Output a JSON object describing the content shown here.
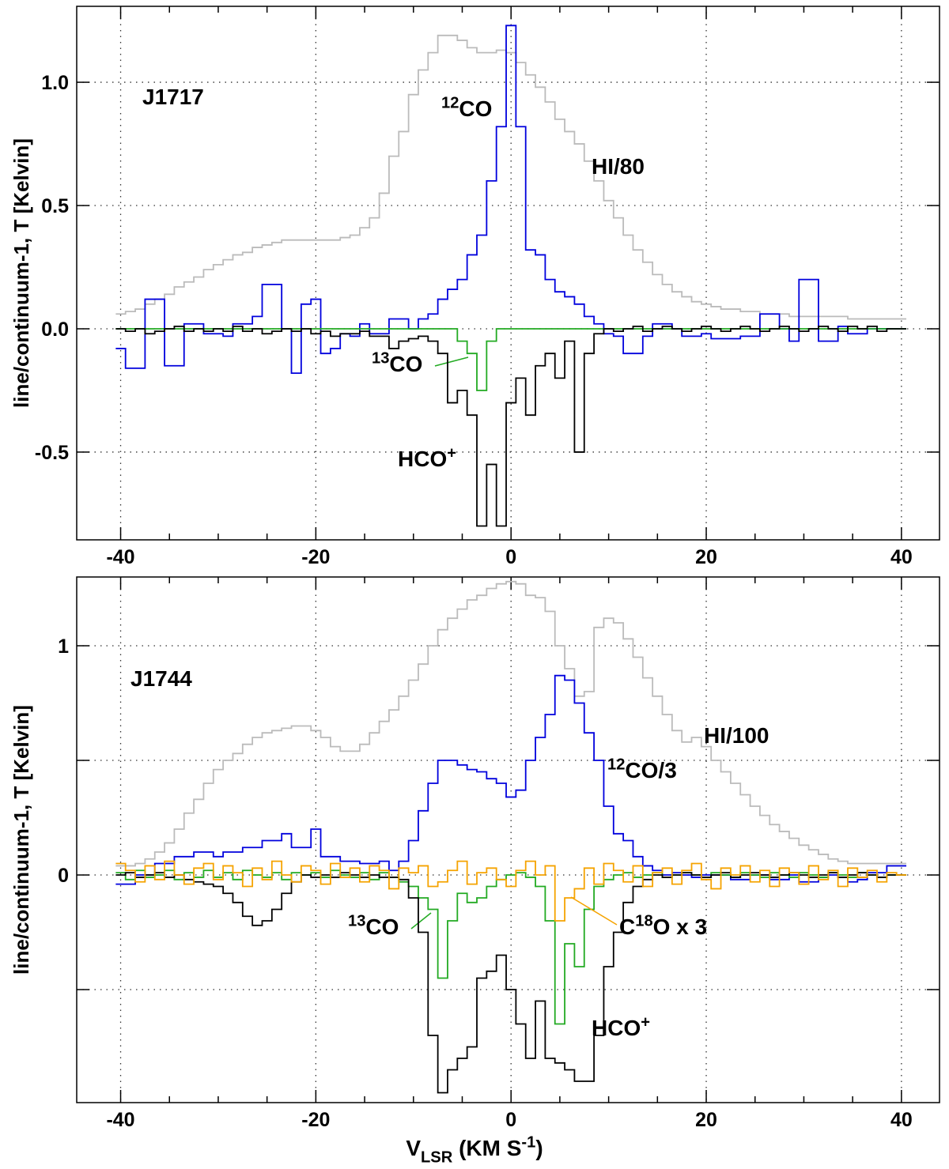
{
  "chart_data": [
    {
      "type": "line",
      "step": true,
      "title": "J1717",
      "ylabel": "line/continuum-1, T [Kelvin]",
      "x": [
        -40,
        -39,
        -38,
        -37,
        -36,
        -35,
        -34,
        -33,
        -32,
        -31,
        -30,
        -29,
        -28,
        -27,
        -26,
        -25,
        -24,
        -23,
        -22,
        -21,
        -20,
        -19,
        -18,
        -17,
        -16,
        -15,
        -14,
        -13,
        -12,
        -11,
        -10,
        -9,
        -8,
        -7,
        -6,
        -5,
        -4,
        -3,
        -2,
        -1,
        0,
        1,
        2,
        3,
        4,
        5,
        6,
        7,
        8,
        9,
        10,
        11,
        12,
        13,
        14,
        15,
        16,
        17,
        18,
        19,
        20,
        21,
        22,
        23,
        24,
        25,
        26,
        27,
        28,
        29,
        30,
        31,
        32,
        33,
        34,
        35,
        36,
        37,
        38,
        39,
        40
      ],
      "xlim": [
        -44.5,
        43.9
      ],
      "xticks": [
        -40,
        -20,
        0,
        20,
        40
      ],
      "xminorticks": [
        -35,
        -30,
        -25,
        -15,
        -10,
        -5,
        5,
        10,
        15,
        25,
        30,
        35
      ],
      "ylim": [
        -0.856,
        1.308
      ],
      "yticks": [
        -0.5,
        {
          "value": 0,
          "label": "0.0"
        },
        0.5,
        {
          "value": 1,
          "label": "1.0"
        }
      ],
      "yminorticks": [],
      "grid": true,
      "series": [
        {
          "label": [
            {
              "text": "HI/80"
            }
          ],
          "color": "#bbbbbb",
          "values": [
            0.06,
            0.07,
            0.08,
            0.1,
            0.12,
            0.14,
            0.17,
            0.19,
            0.21,
            0.24,
            0.26,
            0.28,
            0.3,
            0.31,
            0.33,
            0.34,
            0.35,
            0.36,
            0.36,
            0.36,
            0.36,
            0.36,
            0.36,
            0.37,
            0.38,
            0.41,
            0.45,
            0.55,
            0.7,
            0.8,
            0.95,
            1.05,
            1.12,
            1.19,
            1.19,
            1.17,
            1.14,
            1.12,
            1.12,
            1.13,
            1.12,
            1.08,
            1.03,
            0.98,
            0.92,
            0.85,
            0.8,
            0.75,
            0.68,
            0.6,
            0.52,
            0.45,
            0.38,
            0.32,
            0.27,
            0.22,
            0.18,
            0.15,
            0.13,
            0.11,
            0.1,
            0.09,
            0.08,
            0.08,
            0.07,
            0.07,
            0.06,
            0.06,
            0.06,
            0.05,
            0.05,
            0.05,
            0.05,
            0.05,
            0.05,
            0.04,
            0.04,
            0.04,
            0.04,
            0.04,
            0.04
          ]
        },
        {
          "label": [
            {
              "text": "12",
              "sup": true
            },
            {
              "text": "CO"
            }
          ],
          "color": "#0000dd",
          "values": [
            -0.08,
            -0.16,
            -0.16,
            0.12,
            0.12,
            -0.15,
            -0.15,
            0.02,
            0.02,
            -0.02,
            -0.02,
            -0.03,
            0.02,
            0.02,
            0.05,
            0.18,
            0.18,
            0,
            -0.18,
            0.1,
            0.12,
            -0.1,
            -0.08,
            -0.02,
            -0.03,
            0.02,
            -0.02,
            -0.02,
            0.04,
            0.04,
            0,
            0.04,
            0.06,
            0.12,
            0.16,
            0.2,
            0.3,
            0.38,
            0.6,
            0.82,
            1.23,
            0.82,
            0.32,
            0.3,
            0.2,
            0.15,
            0.13,
            0.1,
            0.05,
            0.02,
            -0.02,
            -0.03,
            -0.1,
            -0.1,
            -0.03,
            0.02,
            0.02,
            0,
            -0.03,
            -0.03,
            -0.02,
            -0.04,
            -0.04,
            -0.04,
            -0.03,
            -0.03,
            0.06,
            0.06,
            0,
            -0.05,
            0.2,
            0.2,
            -0.05,
            -0.05,
            0.01,
            -0.02,
            -0.02,
            0,
            0,
            0,
            0
          ]
        },
        {
          "label": [
            {
              "text": "13",
              "sup": true
            },
            {
              "text": "CO"
            }
          ],
          "color": "#22aa22",
          "values": [
            0,
            0,
            0,
            0,
            0,
            0,
            0,
            0,
            0,
            0,
            0,
            0,
            0,
            0,
            0,
            0,
            0,
            0,
            0,
            0,
            0,
            0,
            0,
            0,
            0,
            0,
            0,
            0,
            0,
            0,
            0,
            0,
            0,
            0,
            0,
            -0.05,
            -0.1,
            -0.25,
            -0.05,
            0,
            0,
            0,
            0,
            0,
            0,
            0,
            0,
            0,
            0,
            0,
            0,
            0,
            0,
            0,
            0,
            0,
            0,
            0,
            0,
            0,
            0,
            0,
            0,
            0,
            0,
            0,
            0,
            0,
            0,
            0,
            0,
            0,
            0,
            0,
            0,
            0,
            0,
            0,
            0,
            0,
            0
          ]
        },
        {
          "label": [
            {
              "text": "HCO"
            },
            {
              "text": "+",
              "sup": true
            }
          ],
          "color": "#000000",
          "values": [
            0,
            -0.01,
            0,
            -0.02,
            -0.01,
            0,
            0.01,
            -0.01,
            0,
            -0.01,
            0,
            -0.01,
            0.01,
            -0.01,
            0,
            -0.02,
            -0.01,
            0,
            -0.01,
            0,
            -0.02,
            -0.01,
            -0.03,
            -0.02,
            -0.02,
            -0.01,
            -0.03,
            -0.03,
            -0.08,
            -0.05,
            -0.04,
            -0.03,
            -0.05,
            -0.1,
            -0.3,
            -0.25,
            -0.35,
            -0.8,
            -0.55,
            -0.8,
            -0.3,
            -0.2,
            -0.35,
            -0.15,
            -0.1,
            -0.2,
            -0.05,
            -0.5,
            -0.1,
            -0.02,
            0,
            -0.01,
            0,
            0.01,
            -0.01,
            0,
            0.01,
            0,
            -0.01,
            0,
            0.01,
            0,
            -0.01,
            0,
            0.01,
            0,
            -0.01,
            0,
            0.01,
            0,
            -0.01,
            0,
            0.01,
            0,
            -0.01,
            0.01,
            0,
            0.01,
            -0.01,
            0,
            0
          ]
        }
      ]
    },
    {
      "type": "line",
      "step": true,
      "title": "J1744",
      "ylabel": "line/continuum-1, T [Kelvin]",
      "xlabel": [
        {
          "text": "V"
        },
        {
          "text": "LSR",
          "sub": true
        },
        {
          "text": " (KM S"
        },
        {
          "text": "-1",
          "sup": true
        },
        {
          "text": ")"
        }
      ],
      "x": [
        -40,
        -39,
        -38,
        -37,
        -36,
        -35,
        -34,
        -33,
        -32,
        -31,
        -30,
        -29,
        -28,
        -27,
        -26,
        -25,
        -24,
        -23,
        -22,
        -21,
        -20,
        -19,
        -18,
        -17,
        -16,
        -15,
        -14,
        -13,
        -12,
        -11,
        -10,
        -9,
        -8,
        -7,
        -6,
        -5,
        -4,
        -3,
        -2,
        -1,
        0,
        1,
        2,
        3,
        4,
        5,
        6,
        7,
        8,
        9,
        10,
        11,
        12,
        13,
        14,
        15,
        16,
        17,
        18,
        19,
        20,
        21,
        22,
        23,
        24,
        25,
        26,
        27,
        28,
        29,
        30,
        31,
        32,
        33,
        34,
        35,
        36,
        37,
        38,
        39,
        40
      ],
      "xlim": [
        -44.5,
        43.9
      ],
      "xticks": [
        -40,
        -20,
        0,
        20,
        40
      ],
      "xminorticks": [
        -35,
        -30,
        -25,
        -15,
        -10,
        -5,
        5,
        10,
        15,
        25,
        30,
        35
      ],
      "ylim": [
        -0.993,
        1.3
      ],
      "yticks": [
        0,
        1
      ],
      "yminorticks": [
        -0.5,
        0.5
      ],
      "grid": true,
      "series": [
        {
          "label": [
            {
              "text": "HI/100"
            }
          ],
          "color": "#bbbbbb",
          "values": [
            0.04,
            0.04,
            0.05,
            0.07,
            0.1,
            0.14,
            0.2,
            0.27,
            0.33,
            0.4,
            0.46,
            0.5,
            0.53,
            0.57,
            0.6,
            0.62,
            0.63,
            0.64,
            0.65,
            0.65,
            0.63,
            0.6,
            0.56,
            0.54,
            0.54,
            0.57,
            0.62,
            0.67,
            0.72,
            0.78,
            0.85,
            0.92,
            1.0,
            1.07,
            1.12,
            1.16,
            1.2,
            1.22,
            1.25,
            1.27,
            1.28,
            1.27,
            1.22,
            1.21,
            1.15,
            1.0,
            0.9,
            0.78,
            0.8,
            1.08,
            1.12,
            1.1,
            1.03,
            0.95,
            0.86,
            0.78,
            0.7,
            0.63,
            0.58,
            0.6,
            0.56,
            0.5,
            0.45,
            0.4,
            0.35,
            0.3,
            0.26,
            0.22,
            0.19,
            0.16,
            0.13,
            0.11,
            0.09,
            0.07,
            0.06,
            0.05,
            0.05,
            0.05,
            0.05,
            0.05,
            0.05
          ]
        },
        {
          "label": [
            {
              "text": "12",
              "sup": true
            },
            {
              "text": "CO/3"
            }
          ],
          "color": "#0000dd",
          "values": [
            -0.04,
            -0.04,
            0,
            0,
            0.05,
            0.05,
            0.08,
            0.08,
            0.1,
            0.1,
            0.08,
            0.1,
            0.1,
            0.12,
            0.12,
            0.15,
            0.15,
            0.18,
            0.12,
            0.12,
            0.2,
            0.08,
            0.08,
            0.06,
            0.06,
            0.05,
            0.05,
            0.06,
            0.02,
            0.06,
            0.15,
            0.28,
            0.4,
            0.5,
            0.5,
            0.48,
            0.46,
            0.45,
            0.42,
            0.4,
            0.34,
            0.37,
            0.5,
            0.6,
            0.7,
            0.87,
            0.85,
            0.75,
            0.62,
            0.5,
            0.3,
            0.18,
            0.15,
            0.08,
            0.04,
            0.02,
            0,
            0.01,
            0,
            -0.01,
            0,
            0,
            0,
            -0.02,
            -0.02,
            0,
            0,
            -0.02,
            -0.02,
            0,
            -0.03,
            -0.03,
            -0.01,
            0,
            -0.01,
            -0.03,
            -0.02,
            0.01,
            0.01,
            0.04,
            0.04
          ]
        },
        {
          "label": [
            {
              "text": "13",
              "sup": true
            },
            {
              "text": "CO"
            }
          ],
          "color": "#22aa22",
          "values": [
            0.01,
            -0.02,
            0.02,
            -0.01,
            0,
            0.02,
            -0.02,
            0.01,
            -0.01,
            0.02,
            -0.01,
            0.01,
            -0.02,
            0.02,
            0,
            -0.01,
            0.01,
            -0.02,
            0.01,
            0,
            0.01,
            -0.01,
            0.02,
            0,
            -0.01,
            0.01,
            -0.02,
            0.01,
            -0.01,
            -0.03,
            -0.05,
            -0.1,
            -0.15,
            -0.45,
            -0.2,
            -0.08,
            -0.12,
            -0.1,
            -0.05,
            -0.02,
            0,
            0.01,
            -0.01,
            -0.05,
            -0.2,
            -0.65,
            -0.3,
            -0.4,
            -0.15,
            -0.05,
            -0.02,
            0,
            0.01,
            -0.01,
            0,
            0.01,
            -0.01,
            0,
            0.01,
            0,
            -0.01,
            0.01,
            0,
            -0.01,
            0.01,
            0,
            -0.01,
            0.01,
            0,
            -0.01,
            0.01,
            0,
            -0.01,
            0.01,
            0,
            -0.01,
            0.01,
            0,
            -0.01,
            0,
            0
          ]
        },
        {
          "label": [
            {
              "text": "HCO"
            },
            {
              "text": "+",
              "sup": true
            }
          ],
          "color": "#000000",
          "values": [
            0,
            0.01,
            -0.01,
            0,
            0.01,
            -0.01,
            0,
            -0.02,
            -0.03,
            -0.04,
            -0.05,
            -0.08,
            -0.12,
            -0.18,
            -0.22,
            -0.2,
            -0.15,
            -0.08,
            -0.03,
            0,
            -0.01,
            0,
            -0.01,
            0.01,
            0,
            -0.01,
            0,
            -0.01,
            -0.01,
            -0.02,
            -0.1,
            -0.25,
            -0.7,
            -0.95,
            -0.85,
            -0.8,
            -0.75,
            -0.45,
            -0.42,
            -0.35,
            -0.5,
            -0.65,
            -0.8,
            -0.55,
            -0.8,
            -0.82,
            -0.85,
            -0.9,
            -0.9,
            -0.7,
            -0.4,
            -0.25,
            -0.12,
            -0.05,
            -0.02,
            0,
            -0.01,
            0,
            0.01,
            0,
            -0.01,
            0,
            0.01,
            -0.01,
            0,
            0.01,
            0,
            -0.01,
            0,
            0.01,
            0,
            -0.01,
            0,
            0.01,
            -0.01,
            0,
            0.01,
            0,
            -0.01,
            0,
            0
          ]
        },
        {
          "label": [
            {
              "text": "C"
            },
            {
              "text": "18",
              "sup": true
            },
            {
              "text": "O x 3"
            }
          ],
          "color": "#f5a300",
          "values": [
            0.05,
            0.02,
            -0.03,
            0.04,
            -0.02,
            0.06,
            0,
            -0.04,
            0.03,
            0.05,
            -0.02,
            0.04,
            0.01,
            -0.05,
            0.03,
            -0.02,
            0.06,
            0,
            -0.03,
            0.04,
            0.02,
            -0.04,
            0.05,
            -0.01,
            0.03,
            -0.03,
            0.04,
            0.02,
            -0.06,
            0.03,
            0.01,
            0.04,
            -0.05,
            -0.03,
            0.02,
            0.06,
            -0.04,
            0.01,
            0.03,
            -0.02,
            -0.05,
            0.02,
            0.06,
            0,
            0.04,
            -0.2,
            -0.1,
            -0.06,
            0.03,
            -0.04,
            0.05,
            0.02,
            -0.03,
            0.04,
            -0.05,
            0.01,
            0.03,
            -0.04,
            0.02,
            0.05,
            -0.02,
            -0.06,
            0.03,
            0,
            0.04,
            -0.03,
            0.02,
            -0.05,
            0.03,
            0.01,
            -0.04,
            0.04,
            -0.02,
            0.02,
            -0.05,
            0.03,
            -0.01,
            0.02,
            -0.03,
            0.01,
            0
          ]
        }
      ]
    }
  ]
}
